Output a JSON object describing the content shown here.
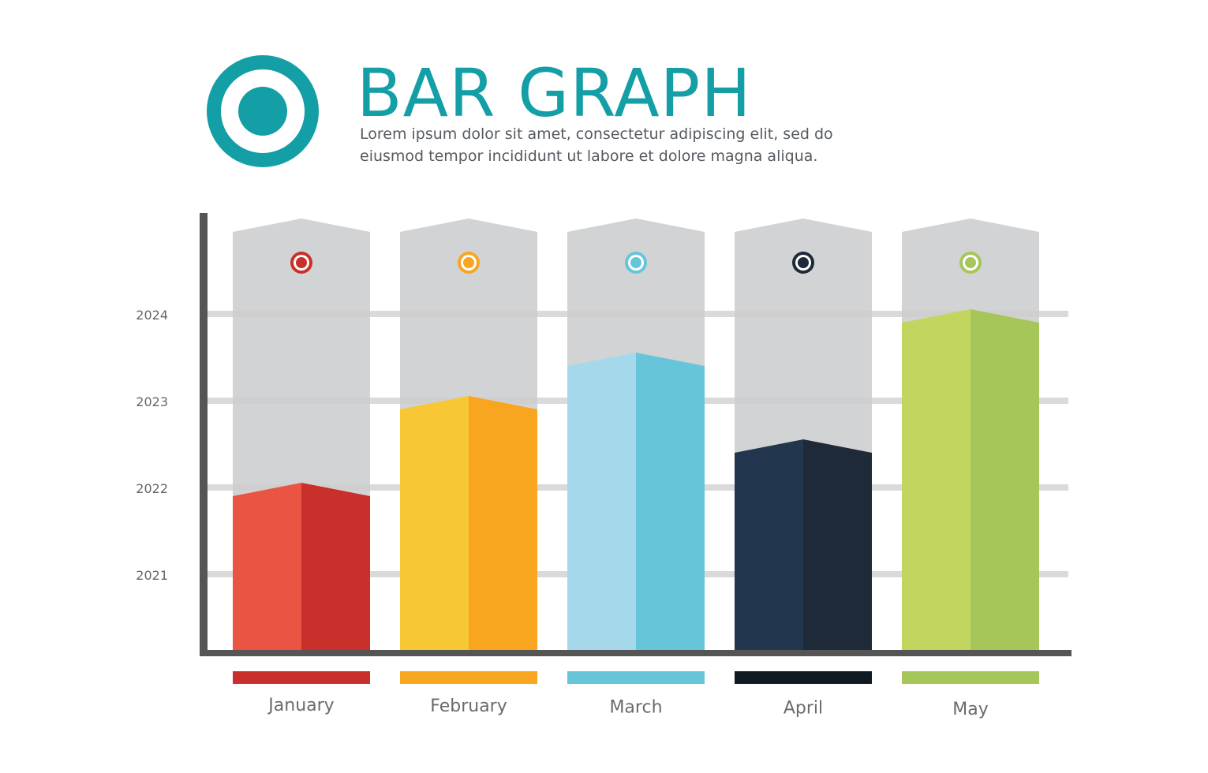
{
  "header": {
    "title": "BAR GRAPH",
    "subtitle": "Lorem ipsum dolor sit amet, consectetur adipiscing elit, sed do eiusmod tempor incididunt ut labore et dolore magna aliqua.",
    "logo_icon": "target-icon",
    "accent_color": "#149ea6"
  },
  "chart_data": {
    "type": "bar",
    "title": "BAR GRAPH",
    "categories": [
      "January",
      "February",
      "March",
      "April",
      "May"
    ],
    "values": [
      2021.9,
      2022.9,
      2023.4,
      2022.4,
      2023.9
    ],
    "yticks": [
      "2021",
      "2022",
      "2023",
      "2024"
    ],
    "ylim": [
      2020.1,
      2025.1
    ],
    "grid": true,
    "legend": "none",
    "colors": [
      {
        "light": "#ea5443",
        "dark": "#c9302b",
        "marker": "#c9302b",
        "legend": "#c9302b"
      },
      {
        "light": "#f8c736",
        "dark": "#f8a61f",
        "marker": "#f8a61f",
        "legend": "#f8a61f"
      },
      {
        "light": "#a6d8ec",
        "dark": "#67c5da",
        "marker": "#67c5da",
        "legend": "#67c5da"
      },
      {
        "light": "#22364d",
        "dark": "#1f2a38",
        "marker": "#1f2a38",
        "legend": "#0f1a22"
      },
      {
        "light": "#c2d65f",
        "dark": "#a6c65a",
        "marker": "#a6c65a",
        "legend": "#a6c65a"
      }
    ],
    "background_bar_color": "#d2d3d4",
    "axis_color": "#555555",
    "grid_color": "#cdcdcd"
  }
}
